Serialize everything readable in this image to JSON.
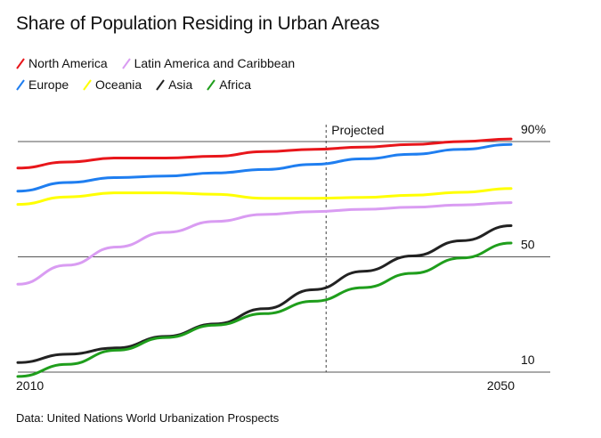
{
  "title": "Share of Population Residing in Urban Areas",
  "source": "Data: United Nations World Urbanization Prospects",
  "chart_data": {
    "type": "line",
    "title": "Share of Population Residing in Urban Areas",
    "xlabel": "",
    "ylabel": "",
    "xlim": [
      2010,
      2050
    ],
    "ylim": [
      8,
      94
    ],
    "x_tick_labels": [
      "2010",
      "2050"
    ],
    "y_tick_labels": [
      "90%",
      "50",
      "10"
    ],
    "y_tick_values": [
      90,
      50,
      10
    ],
    "grid": "horizontal gridlines at 10, 50, 90",
    "legend_position": "top-left",
    "annotation": {
      "label": "Projected",
      "x": 2035
    },
    "x": [
      2010,
      2014,
      2018,
      2022,
      2026,
      2030,
      2034,
      2038,
      2042,
      2046,
      2050
    ],
    "series": [
      {
        "name": "North America",
        "color": "#e8161b",
        "values": [
          80.8,
          82.9,
          84.3,
          84.3,
          84.9,
          86.5,
          87.3,
          88.1,
          89.0,
          90.0,
          90.9
        ]
      },
      {
        "name": "Latin America and Caribbean",
        "color": "#d99cf2",
        "values": [
          40.5,
          47.1,
          53.4,
          58.5,
          62.3,
          64.7,
          65.7,
          66.5,
          67.2,
          68.0,
          68.8
        ]
      },
      {
        "name": "Europe",
        "color": "#1f7ef0",
        "values": [
          72.8,
          75.8,
          77.5,
          78.0,
          79.1,
          80.3,
          82.1,
          84.0,
          85.6,
          87.3,
          89.0
        ]
      },
      {
        "name": "Oceania",
        "color": "#ffff00",
        "values": [
          68.2,
          70.8,
          72.2,
          72.2,
          71.7,
          70.3,
          70.3,
          70.6,
          71.4,
          72.4,
          73.7
        ]
      },
      {
        "name": "Asia",
        "color": "#222222",
        "values": [
          13.3,
          16.2,
          18.4,
          22.4,
          26.7,
          32.0,
          38.6,
          45.0,
          50.3,
          55.6,
          60.8
        ]
      },
      {
        "name": "Africa",
        "color": "#1f9e1c",
        "values": [
          8.5,
          12.7,
          17.6,
          22.0,
          26.3,
          30.3,
          34.6,
          39.3,
          44.3,
          49.6,
          54.8
        ]
      }
    ]
  }
}
